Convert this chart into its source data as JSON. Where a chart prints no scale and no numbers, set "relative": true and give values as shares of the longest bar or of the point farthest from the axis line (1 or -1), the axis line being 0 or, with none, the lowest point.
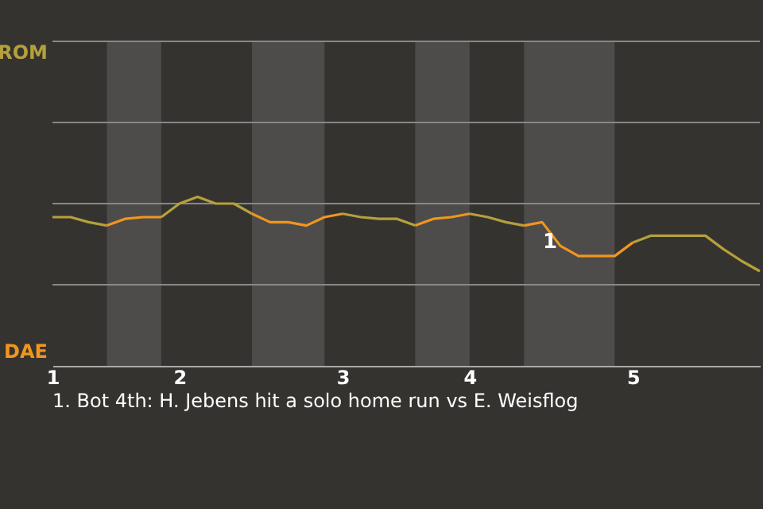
{
  "chart_data": {
    "type": "line",
    "relative": true,
    "categories": [
      "1",
      null,
      null,
      null,
      null,
      null,
      null,
      "2",
      null,
      null,
      null,
      null,
      null,
      null,
      null,
      null,
      "3",
      null,
      null,
      null,
      null,
      null,
      null,
      "4",
      null,
      null,
      null,
      null,
      null,
      null,
      null,
      null,
      "5",
      null,
      null,
      null,
      null,
      null,
      null,
      null
    ],
    "marker": "none",
    "line_style": "solid",
    "ref_lines": [
      {
        "axis": "y",
        "value": 0.48,
        "color": "#888888"
      },
      {
        "axis": "y",
        "value": 0.96,
        "color": "#888888"
      },
      {
        "axis": "y",
        "value": 1.44,
        "color": "#888888"
      },
      {
        "axis": "y",
        "value": 1.92,
        "color": "#888888"
      }
    ],
    "series": [
      {
        "color": "#b5a03c",
        "values": [
          0.88,
          0.88,
          0.85,
          0.83,
          null,
          null,
          0.88,
          0.96,
          1,
          0.96,
          0.96,
          0.9,
          null,
          null,
          null,
          null,
          0.9,
          0.88,
          0.87,
          0.87,
          0.83,
          null,
          null,
          0.9,
          0.88,
          0.85,
          0.83,
          null,
          null,
          null,
          null,
          null,
          0.73,
          0.77,
          0.77,
          0.77,
          0.77,
          0.69,
          0.62,
          0.56
        ]
      },
      {
        "color": "#f0961e",
        "values": [
          null,
          null,
          null,
          0.83,
          0.87,
          0.88,
          0.88,
          null,
          null,
          null,
          null,
          0.9,
          0.85,
          0.85,
          0.83,
          0.88,
          0.9,
          null,
          null,
          null,
          0.83,
          0.87,
          0.88,
          0.9,
          null,
          null,
          0.83,
          0.85,
          0.71,
          0.65,
          0.65,
          0.65,
          0.73,
          null,
          null,
          null,
          null,
          null,
          null,
          null
        ]
      }
    ],
    "annotations": [
      "ROM",
      "DAE",
      "1",
      "1. Bot 4th: H. Jebens hit a solo home run vs E. Weisflog"
    ]
  }
}
